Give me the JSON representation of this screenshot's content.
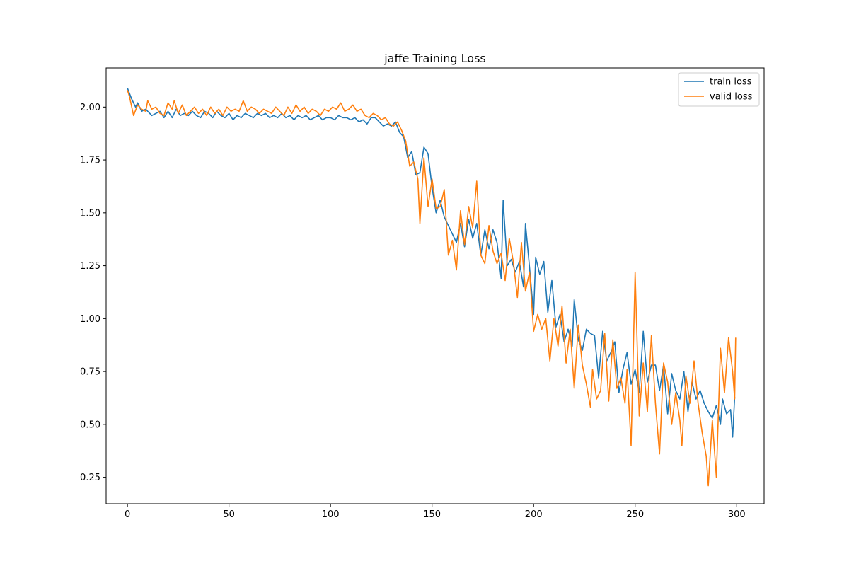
{
  "chart_data": {
    "type": "line",
    "title": "jaffe Training Loss",
    "xlabel": "",
    "ylabel": "",
    "xlim": [
      -10.5,
      313.5
    ],
    "ylim": [
      0.125,
      2.185
    ],
    "xticks": [
      0,
      50,
      100,
      150,
      200,
      250,
      300
    ],
    "yticks": [
      0.25,
      0.5,
      0.75,
      1.0,
      1.25,
      1.5,
      1.75,
      2.0
    ],
    "grid": false,
    "legend_position": "top-right",
    "series": [
      {
        "name": "train loss",
        "color": "#1f77b4",
        "points": [
          [
            0,
            2.09
          ],
          [
            2,
            2.04
          ],
          [
            4,
            2.0
          ],
          [
            5,
            2.02
          ],
          [
            7,
            1.98
          ],
          [
            9,
            1.99
          ],
          [
            10,
            1.98
          ],
          [
            12,
            1.96
          ],
          [
            14,
            1.97
          ],
          [
            16,
            1.98
          ],
          [
            18,
            1.95
          ],
          [
            20,
            1.98
          ],
          [
            22,
            1.95
          ],
          [
            24,
            1.99
          ],
          [
            26,
            1.96
          ],
          [
            28,
            1.97
          ],
          [
            30,
            1.96
          ],
          [
            32,
            1.98
          ],
          [
            34,
            1.96
          ],
          [
            36,
            1.95
          ],
          [
            38,
            1.98
          ],
          [
            40,
            1.97
          ],
          [
            42,
            1.95
          ],
          [
            44,
            1.98
          ],
          [
            46,
            1.96
          ],
          [
            48,
            1.95
          ],
          [
            50,
            1.97
          ],
          [
            52,
            1.94
          ],
          [
            54,
            1.96
          ],
          [
            56,
            1.95
          ],
          [
            58,
            1.97
          ],
          [
            60,
            1.96
          ],
          [
            62,
            1.95
          ],
          [
            64,
            1.97
          ],
          [
            66,
            1.96
          ],
          [
            68,
            1.97
          ],
          [
            70,
            1.95
          ],
          [
            72,
            1.96
          ],
          [
            74,
            1.95
          ],
          [
            76,
            1.97
          ],
          [
            78,
            1.95
          ],
          [
            80,
            1.96
          ],
          [
            82,
            1.94
          ],
          [
            84,
            1.96
          ],
          [
            86,
            1.95
          ],
          [
            88,
            1.96
          ],
          [
            90,
            1.94
          ],
          [
            92,
            1.95
          ],
          [
            94,
            1.96
          ],
          [
            96,
            1.94
          ],
          [
            98,
            1.95
          ],
          [
            100,
            1.95
          ],
          [
            102,
            1.94
          ],
          [
            104,
            1.96
          ],
          [
            106,
            1.95
          ],
          [
            108,
            1.95
          ],
          [
            110,
            1.94
          ],
          [
            112,
            1.95
          ],
          [
            114,
            1.93
          ],
          [
            116,
            1.94
          ],
          [
            118,
            1.92
          ],
          [
            120,
            1.95
          ],
          [
            122,
            1.95
          ],
          [
            124,
            1.93
          ],
          [
            126,
            1.91
          ],
          [
            128,
            1.92
          ],
          [
            130,
            1.91
          ],
          [
            132,
            1.93
          ],
          [
            134,
            1.88
          ],
          [
            136,
            1.86
          ],
          [
            138,
            1.76
          ],
          [
            140,
            1.79
          ],
          [
            142,
            1.68
          ],
          [
            144,
            1.69
          ],
          [
            146,
            1.81
          ],
          [
            148,
            1.78
          ],
          [
            150,
            1.62
          ],
          [
            152,
            1.5
          ],
          [
            154,
            1.56
          ],
          [
            156,
            1.48
          ],
          [
            158,
            1.44
          ],
          [
            160,
            1.4
          ],
          [
            162,
            1.36
          ],
          [
            164,
            1.45
          ],
          [
            166,
            1.34
          ],
          [
            168,
            1.47
          ],
          [
            170,
            1.38
          ],
          [
            172,
            1.45
          ],
          [
            174,
            1.3
          ],
          [
            176,
            1.42
          ],
          [
            178,
            1.33
          ],
          [
            180,
            1.42
          ],
          [
            182,
            1.36
          ],
          [
            184,
            1.19
          ],
          [
            185,
            1.56
          ],
          [
            187,
            1.25
          ],
          [
            189,
            1.28
          ],
          [
            191,
            1.22
          ],
          [
            193,
            1.27
          ],
          [
            195,
            1.15
          ],
          [
            196,
            1.45
          ],
          [
            198,
            1.24
          ],
          [
            200,
            1.02
          ],
          [
            201,
            1.29
          ],
          [
            203,
            1.21
          ],
          [
            205,
            1.27
          ],
          [
            207,
            1.03
          ],
          [
            209,
            1.18
          ],
          [
            211,
            0.96
          ],
          [
            213,
            1.02
          ],
          [
            215,
            0.89
          ],
          [
            217,
            0.95
          ],
          [
            219,
            0.87
          ],
          [
            220,
            1.09
          ],
          [
            222,
            0.9
          ],
          [
            224,
            0.85
          ],
          [
            226,
            0.95
          ],
          [
            228,
            0.93
          ],
          [
            230,
            0.92
          ],
          [
            232,
            0.72
          ],
          [
            234,
            0.94
          ],
          [
            236,
            0.8
          ],
          [
            238,
            0.84
          ],
          [
            240,
            0.89
          ],
          [
            242,
            0.65
          ],
          [
            244,
            0.76
          ],
          [
            246,
            0.84
          ],
          [
            248,
            0.69
          ],
          [
            250,
            0.76
          ],
          [
            252,
            0.65
          ],
          [
            254,
            0.94
          ],
          [
            256,
            0.7
          ],
          [
            258,
            0.78
          ],
          [
            260,
            0.78
          ],
          [
            262,
            0.66
          ],
          [
            264,
            0.78
          ],
          [
            266,
            0.55
          ],
          [
            268,
            0.74
          ],
          [
            270,
            0.66
          ],
          [
            272,
            0.62
          ],
          [
            274,
            0.75
          ],
          [
            276,
            0.56
          ],
          [
            278,
            0.7
          ],
          [
            280,
            0.62
          ],
          [
            282,
            0.66
          ],
          [
            284,
            0.6
          ],
          [
            286,
            0.56
          ],
          [
            288,
            0.53
          ],
          [
            290,
            0.59
          ],
          [
            292,
            0.5
          ],
          [
            293,
            0.62
          ],
          [
            295,
            0.55
          ],
          [
            297,
            0.57
          ],
          [
            298,
            0.44
          ],
          [
            299,
            0.63
          ]
        ]
      },
      {
        "name": "valid loss",
        "color": "#ff7f0e",
        "points": [
          [
            0,
            2.08
          ],
          [
            1,
            2.05
          ],
          [
            3,
            1.96
          ],
          [
            5,
            2.01
          ],
          [
            7,
            1.99
          ],
          [
            9,
            1.98
          ],
          [
            10,
            2.03
          ],
          [
            12,
            1.99
          ],
          [
            14,
            2.0
          ],
          [
            16,
            1.97
          ],
          [
            18,
            1.96
          ],
          [
            20,
            2.02
          ],
          [
            22,
            1.99
          ],
          [
            23,
            2.03
          ],
          [
            25,
            1.97
          ],
          [
            27,
            2.01
          ],
          [
            29,
            1.96
          ],
          [
            31,
            1.98
          ],
          [
            33,
            2.0
          ],
          [
            35,
            1.97
          ],
          [
            37,
            1.99
          ],
          [
            39,
            1.96
          ],
          [
            41,
            2.0
          ],
          [
            43,
            1.97
          ],
          [
            45,
            1.99
          ],
          [
            47,
            1.96
          ],
          [
            49,
            2.0
          ],
          [
            51,
            1.98
          ],
          [
            53,
            1.99
          ],
          [
            55,
            1.98
          ],
          [
            57,
            2.03
          ],
          [
            59,
            1.98
          ],
          [
            61,
            2.0
          ],
          [
            63,
            1.99
          ],
          [
            65,
            1.97
          ],
          [
            67,
            1.99
          ],
          [
            69,
            1.98
          ],
          [
            71,
            1.97
          ],
          [
            73,
            2.0
          ],
          [
            75,
            1.98
          ],
          [
            77,
            1.96
          ],
          [
            79,
            2.0
          ],
          [
            81,
            1.97
          ],
          [
            83,
            2.01
          ],
          [
            85,
            1.98
          ],
          [
            87,
            2.0
          ],
          [
            89,
            1.97
          ],
          [
            91,
            1.99
          ],
          [
            93,
            1.98
          ],
          [
            95,
            1.96
          ],
          [
            97,
            1.99
          ],
          [
            99,
            1.98
          ],
          [
            101,
            2.0
          ],
          [
            103,
            1.99
          ],
          [
            105,
            2.02
          ],
          [
            107,
            1.98
          ],
          [
            109,
            1.99
          ],
          [
            111,
            2.01
          ],
          [
            113,
            1.98
          ],
          [
            115,
            1.99
          ],
          [
            117,
            1.96
          ],
          [
            119,
            1.95
          ],
          [
            121,
            1.97
          ],
          [
            123,
            1.96
          ],
          [
            125,
            1.94
          ],
          [
            127,
            1.95
          ],
          [
            129,
            1.92
          ],
          [
            131,
            1.91
          ],
          [
            133,
            1.93
          ],
          [
            135,
            1.89
          ],
          [
            137,
            1.84
          ],
          [
            139,
            1.72
          ],
          [
            141,
            1.74
          ],
          [
            143,
            1.66
          ],
          [
            144,
            1.45
          ],
          [
            146,
            1.76
          ],
          [
            148,
            1.53
          ],
          [
            150,
            1.66
          ],
          [
            152,
            1.52
          ],
          [
            154,
            1.53
          ],
          [
            156,
            1.61
          ],
          [
            158,
            1.3
          ],
          [
            160,
            1.37
          ],
          [
            162,
            1.23
          ],
          [
            164,
            1.51
          ],
          [
            166,
            1.35
          ],
          [
            168,
            1.53
          ],
          [
            170,
            1.43
          ],
          [
            172,
            1.65
          ],
          [
            174,
            1.3
          ],
          [
            176,
            1.26
          ],
          [
            178,
            1.44
          ],
          [
            180,
            1.32
          ],
          [
            182,
            1.26
          ],
          [
            184,
            1.31
          ],
          [
            186,
            1.18
          ],
          [
            188,
            1.38
          ],
          [
            190,
            1.27
          ],
          [
            192,
            1.1
          ],
          [
            194,
            1.36
          ],
          [
            196,
            1.13
          ],
          [
            198,
            1.22
          ],
          [
            200,
            0.94
          ],
          [
            202,
            1.02
          ],
          [
            204,
            0.95
          ],
          [
            206,
            1.0
          ],
          [
            208,
            0.8
          ],
          [
            210,
            1.0
          ],
          [
            212,
            0.87
          ],
          [
            214,
            1.06
          ],
          [
            216,
            0.79
          ],
          [
            218,
            0.95
          ],
          [
            220,
            0.67
          ],
          [
            222,
            0.97
          ],
          [
            224,
            0.78
          ],
          [
            226,
            0.69
          ],
          [
            228,
            0.58
          ],
          [
            229,
            0.76
          ],
          [
            231,
            0.62
          ],
          [
            233,
            0.66
          ],
          [
            235,
            0.93
          ],
          [
            237,
            0.61
          ],
          [
            239,
            0.9
          ],
          [
            241,
            0.67
          ],
          [
            243,
            0.72
          ],
          [
            245,
            0.6
          ],
          [
            246,
            0.76
          ],
          [
            248,
            0.4
          ],
          [
            250,
            1.22
          ],
          [
            252,
            0.54
          ],
          [
            254,
            0.79
          ],
          [
            256,
            0.56
          ],
          [
            258,
            0.92
          ],
          [
            260,
            0.6
          ],
          [
            262,
            0.36
          ],
          [
            264,
            0.79
          ],
          [
            266,
            0.7
          ],
          [
            268,
            0.5
          ],
          [
            270,
            0.65
          ],
          [
            272,
            0.52
          ],
          [
            273,
            0.4
          ],
          [
            275,
            0.73
          ],
          [
            277,
            0.6
          ],
          [
            279,
            0.8
          ],
          [
            281,
            0.6
          ],
          [
            283,
            0.46
          ],
          [
            285,
            0.35
          ],
          [
            286,
            0.21
          ],
          [
            288,
            0.52
          ],
          [
            290,
            0.25
          ],
          [
            292,
            0.86
          ],
          [
            294,
            0.65
          ],
          [
            296,
            0.91
          ],
          [
            298,
            0.75
          ],
          [
            299,
            0.62
          ],
          [
            299.5,
            0.91
          ]
        ]
      }
    ]
  }
}
